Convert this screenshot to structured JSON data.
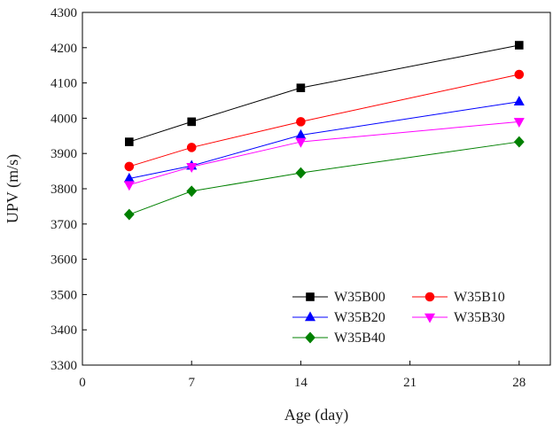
{
  "chart_data": {
    "type": "line",
    "xlabel": "Age (day)",
    "ylabel": "UPV (m/s)",
    "xlim": [
      0,
      30
    ],
    "ylim": [
      3300,
      4300
    ],
    "xticks": [
      0,
      7,
      14,
      21,
      28
    ],
    "xtick_labels": [
      "0",
      "7",
      "14",
      "21",
      "28"
    ],
    "yticks": [
      3300,
      3400,
      3500,
      3600,
      3700,
      3800,
      3900,
      4000,
      4100,
      4200,
      4300
    ],
    "ytick_labels": [
      "3300",
      "3400",
      "3500",
      "3600",
      "3700",
      "3800",
      "3900",
      "4000",
      "4100",
      "4200",
      "4300"
    ],
    "x": [
      3,
      7,
      14,
      28
    ],
    "legend_position": "bottom-right",
    "grid": false,
    "series": [
      {
        "name": "W35B00",
        "values": [
          3933,
          3990,
          4086,
          4207
        ],
        "color": "#000000",
        "marker": "square"
      },
      {
        "name": "W35B10",
        "values": [
          3863,
          3917,
          3990,
          4124
        ],
        "color": "#ff0000",
        "marker": "circle"
      },
      {
        "name": "W35B20",
        "values": [
          3829,
          3865,
          3952,
          4047
        ],
        "color": "#0000ff",
        "marker": "triangle-up"
      },
      {
        "name": "W35B30",
        "values": [
          3811,
          3862,
          3933,
          3990
        ],
        "color": "#ff00ff",
        "marker": "triangle-down"
      },
      {
        "name": "W35B40",
        "values": [
          3727,
          3793,
          3845,
          3933
        ],
        "color": "#008000",
        "marker": "diamond"
      }
    ]
  }
}
